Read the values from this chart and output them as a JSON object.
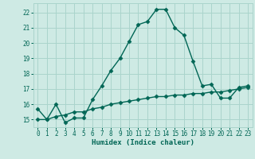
{
  "xlabel": "Humidex (Indice chaleur)",
  "background_color": "#ceeae4",
  "grid_color": "#aad4cc",
  "line_color": "#006655",
  "spine_color": "#aad4cc",
  "xlim": [
    -0.5,
    23.5
  ],
  "ylim": [
    14.5,
    22.6
  ],
  "xticks": [
    0,
    1,
    2,
    3,
    4,
    5,
    6,
    7,
    8,
    9,
    10,
    11,
    12,
    13,
    14,
    15,
    16,
    17,
    18,
    19,
    20,
    21,
    22,
    23
  ],
  "yticks": [
    15,
    16,
    17,
    18,
    19,
    20,
    21,
    22
  ],
  "series1_x": [
    0,
    1,
    2,
    3,
    4,
    5,
    6,
    7,
    8,
    9,
    10,
    11,
    12,
    13,
    14,
    15,
    16,
    17,
    18,
    19,
    20,
    21,
    22,
    23
  ],
  "series1_y": [
    15.7,
    15.0,
    16.0,
    14.8,
    15.1,
    15.1,
    16.3,
    17.2,
    18.2,
    19.0,
    20.1,
    21.2,
    21.4,
    22.2,
    22.2,
    21.0,
    20.5,
    18.8,
    17.2,
    17.3,
    16.4,
    16.4,
    17.1,
    17.2
  ],
  "series2_x": [
    0,
    1,
    2,
    3,
    4,
    5,
    6,
    7,
    8,
    9,
    10,
    11,
    12,
    13,
    14,
    15,
    16,
    17,
    18,
    19,
    20,
    21,
    22,
    23
  ],
  "series2_y": [
    15.0,
    15.0,
    15.2,
    15.3,
    15.5,
    15.5,
    15.7,
    15.8,
    16.0,
    16.1,
    16.2,
    16.3,
    16.4,
    16.5,
    16.5,
    16.6,
    16.6,
    16.7,
    16.7,
    16.8,
    16.8,
    16.9,
    17.0,
    17.1
  ],
  "marker": "D",
  "markersize": 2.5,
  "linewidth": 1.0,
  "xlabel_fontsize": 6.5,
  "tick_fontsize": 5.5
}
